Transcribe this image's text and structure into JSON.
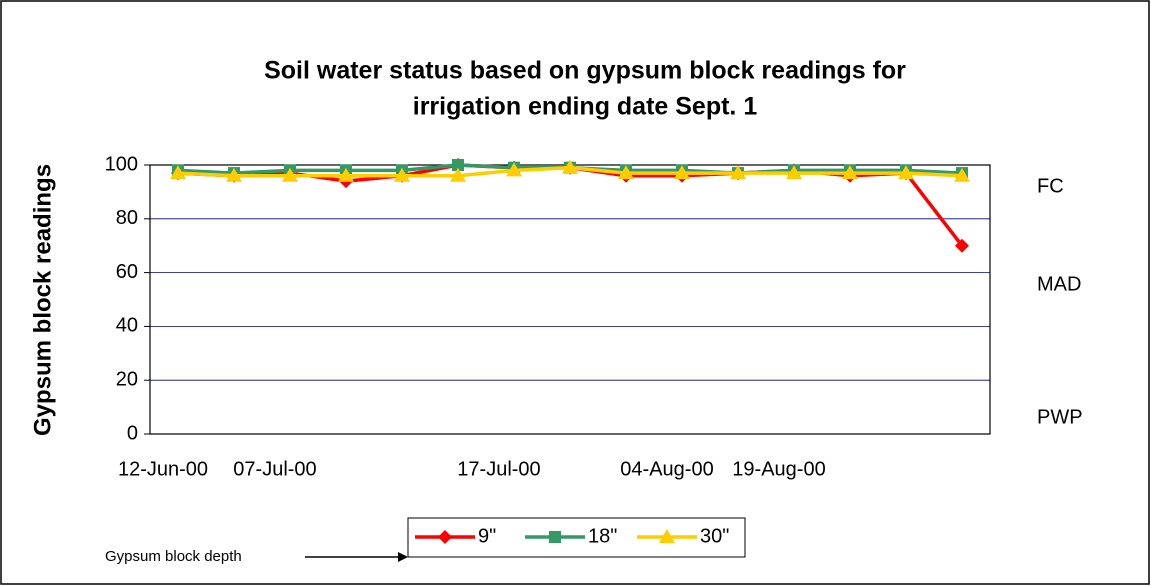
{
  "chart_data": {
    "type": "line",
    "title": "Soil water status based on gypsum block readings for irrigation ending date Sept. 1",
    "y_label": "Gypsum block readings",
    "categories": [
      "12-Jun-00",
      null,
      "07-Jul-00",
      null,
      null,
      null,
      "17-Jul-00",
      null,
      null,
      "04-Aug-00",
      null,
      "19-Aug-00",
      null,
      null,
      null
    ],
    "series": [
      {
        "name": "9\"",
        "color": "#ff0000",
        "marker": "diamond",
        "values": [
          97,
          96,
          97,
          94,
          96,
          100,
          99,
          99,
          96,
          96,
          97,
          98,
          96,
          97,
          70
        ]
      },
      {
        "name": "18\"",
        "color": "#339966",
        "marker": "square",
        "values": [
          98,
          97,
          98,
          98,
          98,
          100,
          99,
          99,
          98,
          98,
          97,
          98,
          98,
          98,
          97
        ]
      },
      {
        "name": "30\"",
        "color": "#ffcc00",
        "marker": "triangle",
        "values": [
          97,
          96,
          96,
          96,
          96,
          96,
          98,
          99,
          97,
          97,
          97,
          97,
          97,
          97,
          96
        ]
      }
    ],
    "ylim": [
      0,
      100
    ],
    "yticks": [
      0,
      20,
      40,
      60,
      80,
      100
    ],
    "grid": true,
    "annotations": [
      "FC",
      "MAD",
      "PWP"
    ],
    "legend_note": "Gypsum block depth"
  }
}
